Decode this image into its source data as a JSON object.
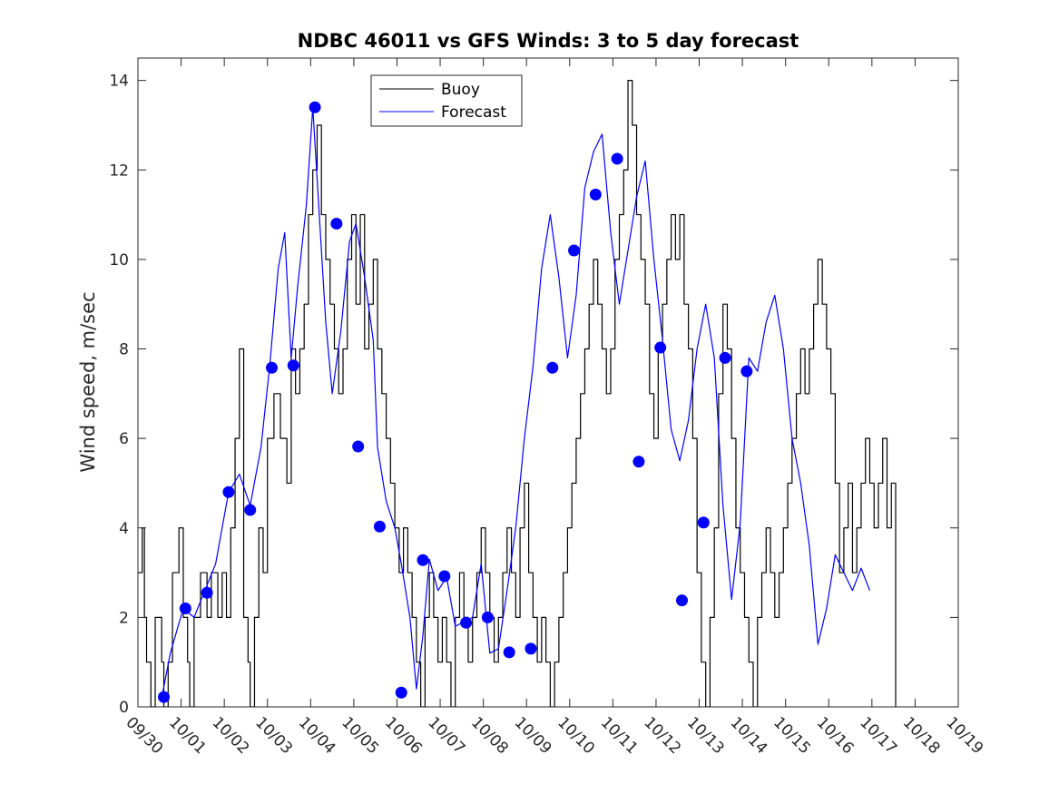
{
  "chart_data": {
    "type": "line",
    "title": "NDBC 46011 vs GFS Winds: 3 to 5 day forecast",
    "xlabel": "",
    "ylabel": "Wind speed, m/sec",
    "xlim": [
      0,
      19
    ],
    "ylim": [
      0,
      14.5
    ],
    "grid": false,
    "legend_position": "top-center",
    "x_ticks": [
      {
        "x": 0,
        "label": "09/30"
      },
      {
        "x": 1,
        "label": "10/01"
      },
      {
        "x": 2,
        "label": "10/02"
      },
      {
        "x": 3,
        "label": "10/03"
      },
      {
        "x": 4,
        "label": "10/04"
      },
      {
        "x": 5,
        "label": "10/05"
      },
      {
        "x": 6,
        "label": "10/06"
      },
      {
        "x": 7,
        "label": "10/07"
      },
      {
        "x": 8,
        "label": "10/08"
      },
      {
        "x": 9,
        "label": "10/09"
      },
      {
        "x": 10,
        "label": "10/10"
      },
      {
        "x": 11,
        "label": "10/11"
      },
      {
        "x": 12,
        "label": "10/12"
      },
      {
        "x": 13,
        "label": "10/13"
      },
      {
        "x": 14,
        "label": "10/14"
      },
      {
        "x": 15,
        "label": "10/15"
      },
      {
        "x": 16,
        "label": "10/16"
      },
      {
        "x": 17,
        "label": "10/17"
      },
      {
        "x": 18,
        "label": "10/18"
      },
      {
        "x": 19,
        "label": "10/19"
      }
    ],
    "y_ticks": [
      {
        "y": 0,
        "label": "0"
      },
      {
        "y": 2,
        "label": "2"
      },
      {
        "y": 4,
        "label": "4"
      },
      {
        "y": 6,
        "label": "6"
      },
      {
        "y": 8,
        "label": "8"
      },
      {
        "y": 10,
        "label": "10"
      },
      {
        "y": 12,
        "label": "12"
      },
      {
        "y": 14,
        "label": "14"
      }
    ],
    "legend": [
      {
        "label": "Buoy",
        "color": "#000000"
      },
      {
        "label": "Forecast",
        "color": "#0000ff"
      }
    ],
    "series": [
      {
        "name": "Buoy",
        "color": "#000000",
        "style": "step",
        "points": [
          [
            0.0,
            3
          ],
          [
            0.1,
            4
          ],
          [
            0.15,
            2
          ],
          [
            0.2,
            1
          ],
          [
            0.3,
            0
          ],
          [
            0.4,
            2
          ],
          [
            0.55,
            1
          ],
          [
            0.6,
            0
          ],
          [
            0.7,
            1
          ],
          [
            0.8,
            3
          ],
          [
            0.95,
            4
          ],
          [
            1.05,
            2
          ],
          [
            1.15,
            1
          ],
          [
            1.2,
            0
          ],
          [
            1.3,
            2
          ],
          [
            1.45,
            3
          ],
          [
            1.6,
            2
          ],
          [
            1.7,
            3
          ],
          [
            1.85,
            2
          ],
          [
            1.95,
            3
          ],
          [
            2.05,
            2
          ],
          [
            2.15,
            4
          ],
          [
            2.25,
            6
          ],
          [
            2.35,
            8
          ],
          [
            2.45,
            2
          ],
          [
            2.55,
            1
          ],
          [
            2.6,
            0
          ],
          [
            2.7,
            2
          ],
          [
            2.8,
            4
          ],
          [
            2.9,
            3
          ],
          [
            3.0,
            6
          ],
          [
            3.15,
            7
          ],
          [
            3.3,
            6
          ],
          [
            3.45,
            5
          ],
          [
            3.55,
            8
          ],
          [
            3.65,
            7
          ],
          [
            3.75,
            8
          ],
          [
            3.85,
            9
          ],
          [
            3.95,
            11
          ],
          [
            4.05,
            12
          ],
          [
            4.15,
            13
          ],
          [
            4.25,
            11
          ],
          [
            4.35,
            10
          ],
          [
            4.45,
            9
          ],
          [
            4.55,
            8
          ],
          [
            4.65,
            7
          ],
          [
            4.75,
            8
          ],
          [
            4.85,
            10
          ],
          [
            4.95,
            11
          ],
          [
            5.05,
            9
          ],
          [
            5.15,
            11
          ],
          [
            5.25,
            8
          ],
          [
            5.35,
            9
          ],
          [
            5.45,
            10
          ],
          [
            5.55,
            8
          ],
          [
            5.65,
            7
          ],
          [
            5.75,
            6
          ],
          [
            5.85,
            5
          ],
          [
            5.95,
            4
          ],
          [
            6.05,
            3
          ],
          [
            6.15,
            4
          ],
          [
            6.25,
            3
          ],
          [
            6.35,
            2
          ],
          [
            6.45,
            1
          ],
          [
            6.55,
            0
          ],
          [
            6.65,
            2
          ],
          [
            6.75,
            3
          ],
          [
            6.85,
            2
          ],
          [
            6.95,
            1
          ],
          [
            7.05,
            2
          ],
          [
            7.15,
            1
          ],
          [
            7.25,
            0
          ],
          [
            7.35,
            2
          ],
          [
            7.45,
            3
          ],
          [
            7.55,
            2
          ],
          [
            7.65,
            1
          ],
          [
            7.75,
            2
          ],
          [
            7.85,
            3
          ],
          [
            7.95,
            4
          ],
          [
            8.05,
            3
          ],
          [
            8.15,
            2
          ],
          [
            8.25,
            1
          ],
          [
            8.35,
            2
          ],
          [
            8.45,
            3
          ],
          [
            8.55,
            4
          ],
          [
            8.65,
            3
          ],
          [
            8.75,
            2
          ],
          [
            8.85,
            4
          ],
          [
            8.95,
            5
          ],
          [
            9.05,
            3
          ],
          [
            9.15,
            2
          ],
          [
            9.25,
            1
          ],
          [
            9.35,
            2
          ],
          [
            9.45,
            1
          ],
          [
            9.55,
            0
          ],
          [
            9.65,
            1
          ],
          [
            9.75,
            2
          ],
          [
            9.85,
            3
          ],
          [
            9.95,
            4
          ],
          [
            10.05,
            5
          ],
          [
            10.15,
            6
          ],
          [
            10.25,
            7
          ],
          [
            10.35,
            8
          ],
          [
            10.45,
            9
          ],
          [
            10.55,
            10
          ],
          [
            10.65,
            9
          ],
          [
            10.75,
            8
          ],
          [
            10.85,
            7
          ],
          [
            10.95,
            8
          ],
          [
            11.05,
            10
          ],
          [
            11.15,
            11
          ],
          [
            11.25,
            12
          ],
          [
            11.35,
            14
          ],
          [
            11.45,
            13
          ],
          [
            11.55,
            11
          ],
          [
            11.65,
            10
          ],
          [
            11.75,
            9
          ],
          [
            11.85,
            7
          ],
          [
            11.95,
            6
          ],
          [
            12.05,
            8
          ],
          [
            12.15,
            9
          ],
          [
            12.25,
            10
          ],
          [
            12.35,
            11
          ],
          [
            12.45,
            10
          ],
          [
            12.55,
            11
          ],
          [
            12.65,
            9
          ],
          [
            12.75,
            8
          ],
          [
            12.85,
            6
          ],
          [
            12.95,
            3
          ],
          [
            13.05,
            1
          ],
          [
            13.15,
            0
          ],
          [
            13.25,
            2
          ],
          [
            13.35,
            4
          ],
          [
            13.45,
            7
          ],
          [
            13.55,
            9
          ],
          [
            13.65,
            8
          ],
          [
            13.75,
            6
          ],
          [
            13.85,
            4
          ],
          [
            13.95,
            3
          ],
          [
            14.05,
            2
          ],
          [
            14.15,
            1
          ],
          [
            14.25,
            0
          ],
          [
            14.35,
            2
          ],
          [
            14.45,
            3
          ],
          [
            14.55,
            4
          ],
          [
            14.65,
            3
          ],
          [
            14.75,
            2
          ],
          [
            14.85,
            3
          ],
          [
            14.95,
            4
          ],
          [
            15.05,
            5
          ],
          [
            15.15,
            6
          ],
          [
            15.25,
            7
          ],
          [
            15.35,
            8
          ],
          [
            15.45,
            7
          ],
          [
            15.55,
            8
          ],
          [
            15.65,
            9
          ],
          [
            15.75,
            10
          ],
          [
            15.85,
            9
          ],
          [
            15.95,
            8
          ],
          [
            16.05,
            7
          ],
          [
            16.15,
            5
          ],
          [
            16.25,
            3
          ],
          [
            16.35,
            4
          ],
          [
            16.45,
            5
          ],
          [
            16.55,
            3
          ],
          [
            16.65,
            4
          ],
          [
            16.75,
            5
          ],
          [
            16.85,
            6
          ],
          [
            16.95,
            5
          ],
          [
            17.05,
            4
          ],
          [
            17.15,
            5
          ],
          [
            17.25,
            6
          ],
          [
            17.35,
            4
          ],
          [
            17.45,
            5
          ],
          [
            17.55,
            0
          ]
        ]
      },
      {
        "name": "Forecast",
        "color": "#0000ff",
        "style": "line",
        "points": [
          [
            0.55,
            0.2
          ],
          [
            0.75,
            1.2
          ],
          [
            1.05,
            2.2
          ],
          [
            1.3,
            2.0
          ],
          [
            1.55,
            2.6
          ],
          [
            1.8,
            3.2
          ],
          [
            2.1,
            4.8
          ],
          [
            2.35,
            5.2
          ],
          [
            2.6,
            4.5
          ],
          [
            2.85,
            5.8
          ],
          [
            3.05,
            7.6
          ],
          [
            3.25,
            9.8
          ],
          [
            3.4,
            10.6
          ],
          [
            3.55,
            7.8
          ],
          [
            3.7,
            9.4
          ],
          [
            3.9,
            11.2
          ],
          [
            4.05,
            13.4
          ],
          [
            4.2,
            11.0
          ],
          [
            4.35,
            8.6
          ],
          [
            4.5,
            7.0
          ],
          [
            4.7,
            8.4
          ],
          [
            4.9,
            10.4
          ],
          [
            5.05,
            10.8
          ],
          [
            5.25,
            9.6
          ],
          [
            5.45,
            8.2
          ],
          [
            5.55,
            5.8
          ],
          [
            5.75,
            4.6
          ],
          [
            5.95,
            4.0
          ],
          [
            6.1,
            3.2
          ],
          [
            6.3,
            2.0
          ],
          [
            6.45,
            0.4
          ],
          [
            6.6,
            1.6
          ],
          [
            6.75,
            3.3
          ],
          [
            6.95,
            2.6
          ],
          [
            7.15,
            2.9
          ],
          [
            7.35,
            1.8
          ],
          [
            7.55,
            1.9
          ],
          [
            7.75,
            2.0
          ],
          [
            7.95,
            3.2
          ],
          [
            8.15,
            1.2
          ],
          [
            8.35,
            1.3
          ],
          [
            8.55,
            2.6
          ],
          [
            8.75,
            4.0
          ],
          [
            8.95,
            6.0
          ],
          [
            9.15,
            7.6
          ],
          [
            9.35,
            9.8
          ],
          [
            9.55,
            11.0
          ],
          [
            9.75,
            9.6
          ],
          [
            9.95,
            7.8
          ],
          [
            10.15,
            9.2
          ],
          [
            10.35,
            11.6
          ],
          [
            10.55,
            12.4
          ],
          [
            10.75,
            12.8
          ],
          [
            10.95,
            10.6
          ],
          [
            11.15,
            9.0
          ],
          [
            11.35,
            10.2
          ],
          [
            11.55,
            11.4
          ],
          [
            11.75,
            12.2
          ],
          [
            11.95,
            10.0
          ],
          [
            12.15,
            8.2
          ],
          [
            12.35,
            6.2
          ],
          [
            12.55,
            5.5
          ],
          [
            12.75,
            6.4
          ],
          [
            12.95,
            8.0
          ],
          [
            13.15,
            9.0
          ],
          [
            13.35,
            7.8
          ],
          [
            13.55,
            4.5
          ],
          [
            13.75,
            2.4
          ],
          [
            13.95,
            4.1
          ],
          [
            14.15,
            7.8
          ],
          [
            14.35,
            7.5
          ],
          [
            14.55,
            8.6
          ],
          [
            14.75,
            9.2
          ],
          [
            14.95,
            8.0
          ],
          [
            15.15,
            6.0
          ],
          [
            15.35,
            5.0
          ],
          [
            15.55,
            3.6
          ],
          [
            15.75,
            1.4
          ],
          [
            15.95,
            2.2
          ],
          [
            16.15,
            3.4
          ],
          [
            16.35,
            3.0
          ],
          [
            16.55,
            2.6
          ],
          [
            16.75,
            3.1
          ],
          [
            16.95,
            2.6
          ]
        ]
      }
    ],
    "forecast_markers": [
      [
        0.6,
        0.22
      ],
      [
        1.1,
        2.2
      ],
      [
        1.6,
        2.55
      ],
      [
        2.1,
        4.8
      ],
      [
        2.6,
        4.4
      ],
      [
        3.1,
        7.58
      ],
      [
        3.6,
        7.63
      ],
      [
        4.1,
        13.4
      ],
      [
        4.6,
        10.8
      ],
      [
        5.1,
        5.82
      ],
      [
        5.6,
        4.03
      ],
      [
        6.1,
        0.32
      ],
      [
        6.6,
        3.28
      ],
      [
        7.1,
        2.92
      ],
      [
        7.6,
        1.88
      ],
      [
        8.1,
        2.0
      ],
      [
        8.6,
        1.22
      ],
      [
        9.1,
        1.3
      ],
      [
        9.6,
        7.58
      ],
      [
        10.1,
        10.2
      ],
      [
        10.6,
        11.45
      ],
      [
        11.1,
        12.25
      ],
      [
        11.6,
        5.48
      ],
      [
        12.1,
        8.03
      ],
      [
        12.6,
        2.38
      ],
      [
        13.1,
        4.12
      ],
      [
        13.6,
        7.8
      ],
      [
        14.1,
        7.5
      ]
    ]
  }
}
